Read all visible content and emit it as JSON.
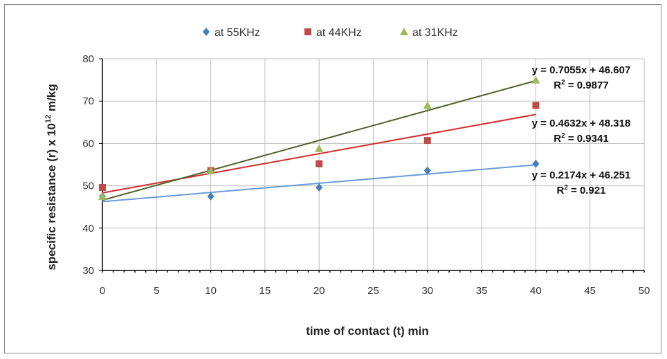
{
  "chart_data": {
    "type": "scatter",
    "xlabel": "time of contact (t) min",
    "ylabel_main": "specific resistance (r) x 10",
    "ylabel_sup": "12",
    "ylabel_unit": " m/kg",
    "xlim": [
      0,
      50
    ],
    "ylim": [
      30,
      80
    ],
    "xticks": [
      0,
      5,
      10,
      15,
      20,
      25,
      30,
      35,
      40,
      45,
      50
    ],
    "yticks": [
      30,
      40,
      50,
      60,
      70,
      80
    ],
    "grid": true,
    "legend_position": "top",
    "series": [
      {
        "name": "at 55KHz",
        "marker": "diamond",
        "color": "#4a7ebb",
        "trend_color": "#6a9bd8",
        "x": [
          0,
          10,
          20,
          30,
          40
        ],
        "y": [
          47.5,
          47.5,
          49.6,
          53.6,
          55.2
        ],
        "trendline": {
          "slope": 0.2174,
          "intercept": 46.251,
          "equation": "y = 0.2174x + 46.251",
          "r2_label": "R",
          "r2_value": " = 0.921"
        }
      },
      {
        "name": "at 44KHz",
        "marker": "square",
        "color": "#be4b48",
        "trend_color": "#d42b2b",
        "x": [
          0,
          10,
          20,
          30,
          40
        ],
        "y": [
          49.6,
          53.6,
          55.2,
          60.7,
          69.0
        ],
        "trendline": {
          "slope": 0.4632,
          "intercept": 48.318,
          "equation": "y = 0.4632x + 48.318",
          "r2_label": "R",
          "r2_value": " = 0.9341"
        }
      },
      {
        "name": "at 31KHz",
        "marker": "triangle",
        "color": "#9bbb59",
        "trend_color": "#4f6228",
        "x": [
          0,
          10,
          20,
          30,
          40
        ],
        "y": [
          47.5,
          53.6,
          58.8,
          69.0,
          75.0
        ],
        "trendline": {
          "slope": 0.7055,
          "intercept": 46.607,
          "equation": "y = 0.7055x + 46.607",
          "r2_label": "R",
          "r2_value": " = 0.9877"
        }
      }
    ]
  }
}
